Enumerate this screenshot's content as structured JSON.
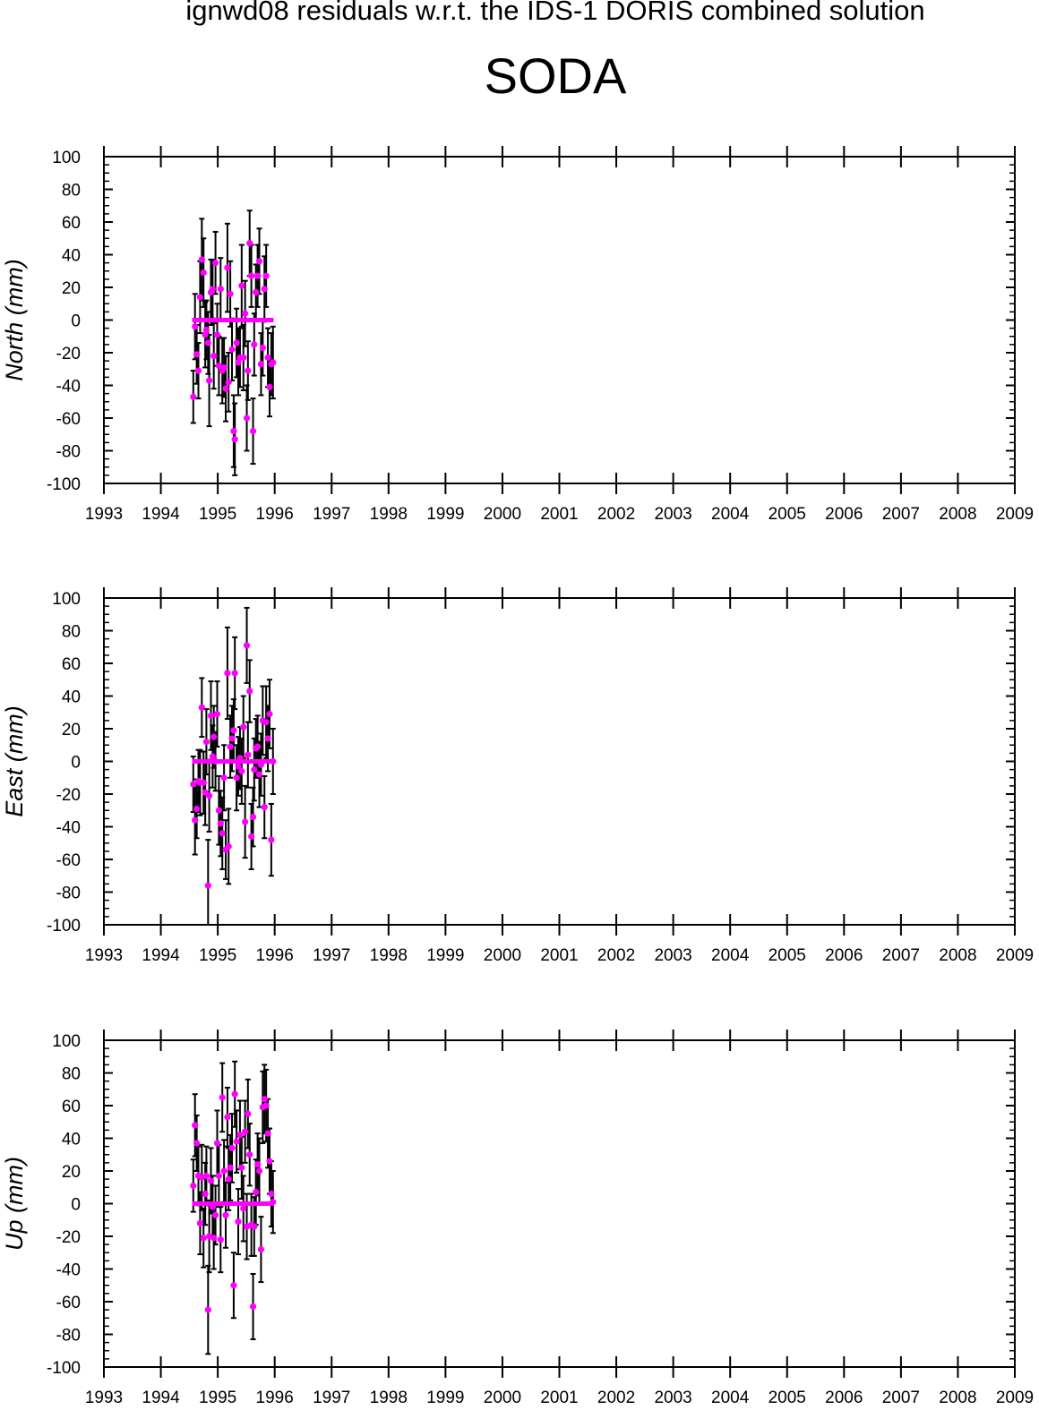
{
  "title": "ignwd08 residuals w.r.t. the IDS-1 DORIS combined solution",
  "station": "SODA",
  "colors": {
    "marker": "#ff00ff",
    "errorbar": "#000000",
    "axis": "#000000"
  },
  "chart_data": [
    {
      "type": "scatter",
      "ylabel": "North (mm)",
      "xlim": [
        1993,
        2009
      ],
      "ylim": [
        -100,
        100
      ],
      "x_ticks": [
        "1993",
        "1994",
        "1995",
        "1996",
        "1997",
        "1998",
        "1999",
        "2000",
        "2001",
        "2002",
        "2003",
        "2004",
        "2005",
        "2006",
        "2007",
        "2008",
        "2009"
      ],
      "y_ticks": [
        "100",
        "80",
        "60",
        "40",
        "20",
        "0",
        "-20",
        "-40",
        "-60",
        "-80",
        "-100"
      ],
      "zero_line": {
        "x_start": 1994.55,
        "x_end": 1995.98,
        "y": 0
      },
      "points": [
        {
          "x": 1994.57,
          "y": -47,
          "err": 16
        },
        {
          "x": 1994.6,
          "y": -4,
          "err": 20
        },
        {
          "x": 1994.63,
          "y": -21,
          "err": 18
        },
        {
          "x": 1994.66,
          "y": -31,
          "err": 17
        },
        {
          "x": 1994.69,
          "y": 14,
          "err": 22
        },
        {
          "x": 1994.72,
          "y": 37,
          "err": 25
        },
        {
          "x": 1994.75,
          "y": 29,
          "err": 21
        },
        {
          "x": 1994.78,
          "y": -9,
          "err": 20
        },
        {
          "x": 1994.8,
          "y": -6,
          "err": 18
        },
        {
          "x": 1994.83,
          "y": -14,
          "err": 19
        },
        {
          "x": 1994.85,
          "y": -37,
          "err": 28
        },
        {
          "x": 1994.88,
          "y": 17,
          "err": 20
        },
        {
          "x": 1994.91,
          "y": 19,
          "err": 18
        },
        {
          "x": 1994.93,
          "y": -22,
          "err": 20
        },
        {
          "x": 1994.96,
          "y": 35,
          "err": 19
        },
        {
          "x": 1994.99,
          "y": -9,
          "err": 19
        },
        {
          "x": 1995.02,
          "y": -28,
          "err": 18
        },
        {
          "x": 1995.05,
          "y": 19,
          "err": 19
        },
        {
          "x": 1995.08,
          "y": -31,
          "err": 20
        },
        {
          "x": 1995.11,
          "y": -29,
          "err": 18
        },
        {
          "x": 1995.14,
          "y": -42,
          "err": 20
        },
        {
          "x": 1995.17,
          "y": 32,
          "err": 27
        },
        {
          "x": 1995.19,
          "y": -38,
          "err": 18
        },
        {
          "x": 1995.22,
          "y": 16,
          "err": 20
        },
        {
          "x": 1995.25,
          "y": -18,
          "err": 19
        },
        {
          "x": 1995.28,
          "y": -68,
          "err": 22
        },
        {
          "x": 1995.3,
          "y": -73,
          "err": 22
        },
        {
          "x": 1995.33,
          "y": -14,
          "err": 21
        },
        {
          "x": 1995.36,
          "y": -26,
          "err": 20
        },
        {
          "x": 1995.39,
          "y": -23,
          "err": 18
        },
        {
          "x": 1995.42,
          "y": 21,
          "err": 25
        },
        {
          "x": 1995.45,
          "y": -23,
          "err": 20
        },
        {
          "x": 1995.48,
          "y": 4,
          "err": 20
        },
        {
          "x": 1995.51,
          "y": -60,
          "err": 20
        },
        {
          "x": 1995.53,
          "y": -31,
          "err": 18
        },
        {
          "x": 1995.56,
          "y": 47,
          "err": 20
        },
        {
          "x": 1995.59,
          "y": 27,
          "err": 19
        },
        {
          "x": 1995.62,
          "y": -68,
          "err": 20
        },
        {
          "x": 1995.64,
          "y": -15,
          "err": 19
        },
        {
          "x": 1995.67,
          "y": 17,
          "err": 17
        },
        {
          "x": 1995.7,
          "y": 27,
          "err": 19
        },
        {
          "x": 1995.73,
          "y": 36,
          "err": 20
        },
        {
          "x": 1995.76,
          "y": -27,
          "err": 19
        },
        {
          "x": 1995.79,
          "y": -17,
          "err": 17
        },
        {
          "x": 1995.82,
          "y": 19,
          "err": 20
        },
        {
          "x": 1995.85,
          "y": 27,
          "err": 19
        },
        {
          "x": 1995.88,
          "y": -23,
          "err": 18
        },
        {
          "x": 1995.91,
          "y": -41,
          "err": 18
        },
        {
          "x": 1995.94,
          "y": -27,
          "err": 19
        },
        {
          "x": 1995.97,
          "y": -26,
          "err": 22
        }
      ]
    },
    {
      "type": "scatter",
      "ylabel": "East (mm)",
      "xlim": [
        1993,
        2009
      ],
      "ylim": [
        -100,
        100
      ],
      "x_ticks": [
        "1993",
        "1994",
        "1995",
        "1996",
        "1997",
        "1998",
        "1999",
        "2000",
        "2001",
        "2002",
        "2003",
        "2004",
        "2005",
        "2006",
        "2007",
        "2008",
        "2009"
      ],
      "y_ticks": [
        "100",
        "80",
        "60",
        "40",
        "20",
        "0",
        "-20",
        "-40",
        "-60",
        "-80",
        "-100"
      ],
      "zero_line": {
        "x_start": 1994.55,
        "x_end": 1995.98,
        "y": 0
      },
      "points": [
        {
          "x": 1994.57,
          "y": -14,
          "err": 17
        },
        {
          "x": 1994.6,
          "y": -36,
          "err": 21
        },
        {
          "x": 1994.63,
          "y": -29,
          "err": 18
        },
        {
          "x": 1994.66,
          "y": -12,
          "err": 19
        },
        {
          "x": 1994.69,
          "y": -13,
          "err": 20
        },
        {
          "x": 1994.72,
          "y": 33,
          "err": 18
        },
        {
          "x": 1994.75,
          "y": -13,
          "err": 19
        },
        {
          "x": 1994.78,
          "y": -19,
          "err": 20
        },
        {
          "x": 1994.8,
          "y": 12,
          "err": 20
        },
        {
          "x": 1994.83,
          "y": -76,
          "err": 28
        },
        {
          "x": 1994.85,
          "y": -21,
          "err": 22
        },
        {
          "x": 1994.88,
          "y": 28,
          "err": 21
        },
        {
          "x": 1994.91,
          "y": 3,
          "err": 19
        },
        {
          "x": 1994.93,
          "y": 15,
          "err": 19
        },
        {
          "x": 1994.96,
          "y": 0,
          "err": 18
        },
        {
          "x": 1994.99,
          "y": 29,
          "err": 20
        },
        {
          "x": 1995.02,
          "y": -30,
          "err": 21
        },
        {
          "x": 1995.05,
          "y": -38,
          "err": 20
        },
        {
          "x": 1995.08,
          "y": -44,
          "err": 22
        },
        {
          "x": 1995.11,
          "y": -10,
          "err": 20
        },
        {
          "x": 1995.14,
          "y": -54,
          "err": 18
        },
        {
          "x": 1995.17,
          "y": 54,
          "err": 28
        },
        {
          "x": 1995.19,
          "y": -52,
          "err": 23
        },
        {
          "x": 1995.22,
          "y": 9,
          "err": 19
        },
        {
          "x": 1995.25,
          "y": 14,
          "err": 20
        },
        {
          "x": 1995.28,
          "y": 19,
          "err": 19
        },
        {
          "x": 1995.3,
          "y": 54,
          "err": 22
        },
        {
          "x": 1995.33,
          "y": -10,
          "err": 20
        },
        {
          "x": 1995.36,
          "y": -3,
          "err": 18
        },
        {
          "x": 1995.39,
          "y": 2,
          "err": 19
        },
        {
          "x": 1995.42,
          "y": -6,
          "err": 20
        },
        {
          "x": 1995.45,
          "y": 21,
          "err": 19
        },
        {
          "x": 1995.48,
          "y": -37,
          "err": 22
        },
        {
          "x": 1995.51,
          "y": 71,
          "err": 23
        },
        {
          "x": 1995.53,
          "y": 4,
          "err": 20
        },
        {
          "x": 1995.56,
          "y": 43,
          "err": 19
        },
        {
          "x": 1995.59,
          "y": -46,
          "err": 20
        },
        {
          "x": 1995.62,
          "y": -34,
          "err": 18
        },
        {
          "x": 1995.64,
          "y": -5,
          "err": 19
        },
        {
          "x": 1995.67,
          "y": 8,
          "err": 18
        },
        {
          "x": 1995.7,
          "y": 9,
          "err": 19
        },
        {
          "x": 1995.73,
          "y": -8,
          "err": 20
        },
        {
          "x": 1995.76,
          "y": -2,
          "err": 19
        },
        {
          "x": 1995.79,
          "y": 25,
          "err": 21
        },
        {
          "x": 1995.82,
          "y": -28,
          "err": 19
        },
        {
          "x": 1995.85,
          "y": 24,
          "err": 22
        },
        {
          "x": 1995.88,
          "y": 14,
          "err": 20
        },
        {
          "x": 1995.91,
          "y": 29,
          "err": 21
        },
        {
          "x": 1995.94,
          "y": -48,
          "err": 22
        },
        {
          "x": 1995.97,
          "y": 0,
          "err": 20
        }
      ]
    },
    {
      "type": "scatter",
      "ylabel": "Up (mm)",
      "xlim": [
        1993,
        2009
      ],
      "ylim": [
        -100,
        100
      ],
      "x_ticks": [
        "1993",
        "1994",
        "1995",
        "1996",
        "1997",
        "1998",
        "1999",
        "2000",
        "2001",
        "2002",
        "2003",
        "2004",
        "2005",
        "2006",
        "2007",
        "2008",
        "2009"
      ],
      "y_ticks": [
        "100",
        "80",
        "60",
        "40",
        "20",
        "0",
        "-20",
        "-40",
        "-60",
        "-80",
        "-100"
      ],
      "zero_line": {
        "x_start": 1994.55,
        "x_end": 1995.98,
        "y": 0
      },
      "points": [
        {
          "x": 1994.57,
          "y": 11,
          "err": 16
        },
        {
          "x": 1994.6,
          "y": 48,
          "err": 19
        },
        {
          "x": 1994.63,
          "y": 37,
          "err": 17
        },
        {
          "x": 1994.66,
          "y": 17,
          "err": 18
        },
        {
          "x": 1994.69,
          "y": -12,
          "err": 19
        },
        {
          "x": 1994.72,
          "y": 16,
          "err": 20
        },
        {
          "x": 1994.75,
          "y": -21,
          "err": 18
        },
        {
          "x": 1994.78,
          "y": 6,
          "err": 19
        },
        {
          "x": 1994.8,
          "y": 17,
          "err": 18
        },
        {
          "x": 1994.83,
          "y": -65,
          "err": 27
        },
        {
          "x": 1994.85,
          "y": -20,
          "err": 22
        },
        {
          "x": 1994.88,
          "y": 14,
          "err": 20
        },
        {
          "x": 1994.91,
          "y": -2,
          "err": 19
        },
        {
          "x": 1994.93,
          "y": -21,
          "err": 19
        },
        {
          "x": 1994.96,
          "y": -7,
          "err": 18
        },
        {
          "x": 1994.99,
          "y": 37,
          "err": 20
        },
        {
          "x": 1995.02,
          "y": 17,
          "err": 19
        },
        {
          "x": 1995.05,
          "y": -22,
          "err": 20
        },
        {
          "x": 1995.08,
          "y": 65,
          "err": 21
        },
        {
          "x": 1995.11,
          "y": 20,
          "err": 19
        },
        {
          "x": 1995.14,
          "y": -7,
          "err": 20
        },
        {
          "x": 1995.17,
          "y": 53,
          "err": 18
        },
        {
          "x": 1995.19,
          "y": 15,
          "err": 19
        },
        {
          "x": 1995.22,
          "y": 22,
          "err": 20
        },
        {
          "x": 1995.25,
          "y": 34,
          "err": 21
        },
        {
          "x": 1995.28,
          "y": -50,
          "err": 20
        },
        {
          "x": 1995.3,
          "y": 67,
          "err": 20
        },
        {
          "x": 1995.33,
          "y": 38,
          "err": 19
        },
        {
          "x": 1995.36,
          "y": -11,
          "err": 20
        },
        {
          "x": 1995.39,
          "y": 42,
          "err": 21
        },
        {
          "x": 1995.42,
          "y": 22,
          "err": 19
        },
        {
          "x": 1995.45,
          "y": -3,
          "err": 20
        },
        {
          "x": 1995.48,
          "y": 44,
          "err": 19
        },
        {
          "x": 1995.51,
          "y": -14,
          "err": 20
        },
        {
          "x": 1995.53,
          "y": 55,
          "err": 21
        },
        {
          "x": 1995.56,
          "y": 30,
          "err": 19
        },
        {
          "x": 1995.59,
          "y": -13,
          "err": 19
        },
        {
          "x": 1995.62,
          "y": -63,
          "err": 20
        },
        {
          "x": 1995.64,
          "y": -14,
          "err": 18
        },
        {
          "x": 1995.67,
          "y": 7,
          "err": 20
        },
        {
          "x": 1995.7,
          "y": 24,
          "err": 19
        },
        {
          "x": 1995.73,
          "y": 20,
          "err": 20
        },
        {
          "x": 1995.76,
          "y": -28,
          "err": 20
        },
        {
          "x": 1995.79,
          "y": 59,
          "err": 22
        },
        {
          "x": 1995.82,
          "y": 64,
          "err": 21
        },
        {
          "x": 1995.85,
          "y": 60,
          "err": 22
        },
        {
          "x": 1995.88,
          "y": 43,
          "err": 21
        },
        {
          "x": 1995.91,
          "y": 26,
          "err": 20
        },
        {
          "x": 1995.94,
          "y": 6,
          "err": 20
        },
        {
          "x": 1995.97,
          "y": 1,
          "err": 19
        }
      ]
    }
  ]
}
